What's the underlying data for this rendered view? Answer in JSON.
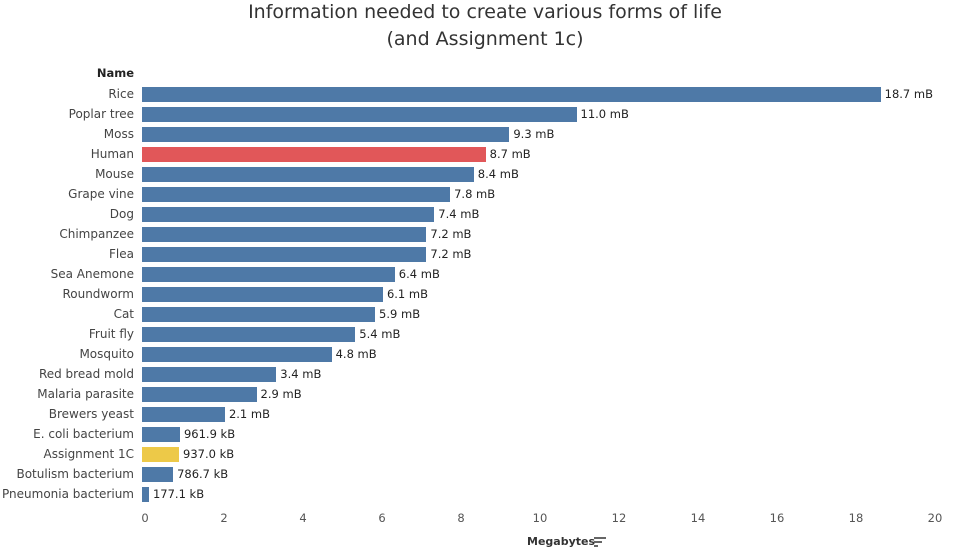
{
  "chart_data": {
    "type": "bar",
    "title": "Information needed to create various forms of life",
    "subtitle": "(and Assignment 1c)",
    "row_header": "Name",
    "xlabel": "Megabytes",
    "xlim": [
      0,
      20
    ],
    "xticks": [
      0,
      2,
      4,
      6,
      8,
      10,
      12,
      14,
      16,
      18,
      20
    ],
    "grid": false,
    "orientation": "horizontal",
    "colors": {
      "default": "#4e79a7",
      "human": "#e15759",
      "assignment": "#edc948"
    },
    "categories": [
      "Rice",
      "Poplar tree",
      "Moss",
      "Human",
      "Mouse",
      "Grape vine",
      "Dog",
      "Chimpanzee",
      "Flea",
      "Sea Anemone",
      "Roundworm",
      "Cat",
      "Fruit fly",
      "Mosquito",
      "Red bread mold",
      "Malaria parasite",
      "Brewers yeast",
      "E. coli bacterium",
      "Assignment 1C",
      "Botulism bacterium",
      "Pneumonia bacterium"
    ],
    "values": [
      18.7,
      11.0,
      9.3,
      8.7,
      8.4,
      7.8,
      7.4,
      7.2,
      7.2,
      6.4,
      6.1,
      5.9,
      5.4,
      4.8,
      3.4,
      2.9,
      2.1,
      0.9619,
      0.937,
      0.7867,
      0.1771
    ],
    "data_labels": [
      "18.7 mB",
      "11.0 mB",
      "9.3 mB",
      "8.7 mB",
      "8.4 mB",
      "7.8 mB",
      "7.4 mB",
      "7.2 mB",
      "7.2 mB",
      "6.4 mB",
      "6.1 mB",
      "5.9 mB",
      "5.4 mB",
      "4.8 mB",
      "3.4 mB",
      "2.9 mB",
      "2.1 mB",
      "961.9 kB",
      "937.0 kB",
      "786.7 kB",
      "177.1 kB"
    ],
    "highlight": {
      "Human": "human",
      "Assignment 1C": "assignment"
    }
  },
  "icons": {
    "sort": "sort-descending-icon"
  }
}
